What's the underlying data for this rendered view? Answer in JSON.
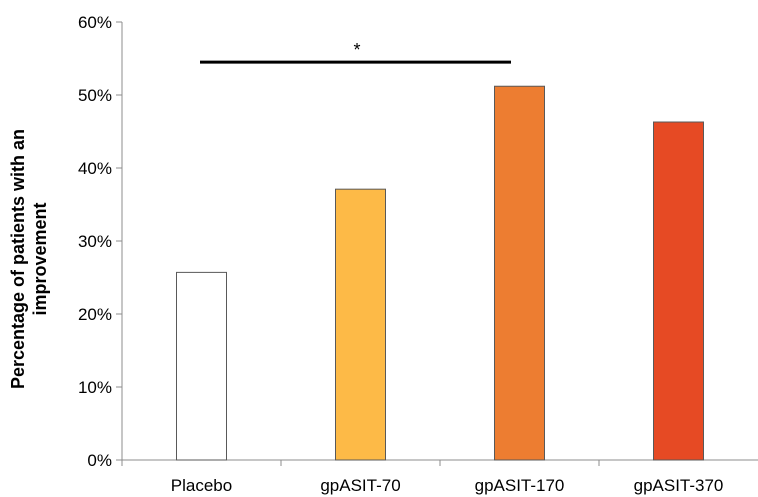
{
  "chart_data": {
    "type": "bar",
    "categories": [
      "Placebo",
      "gpASIT-70",
      "gpASIT-170",
      "gpASIT-370"
    ],
    "values": [
      25.7,
      37.1,
      51.2,
      46.3
    ],
    "bar_fills": [
      "#FFFFFF",
      "#FDBA47",
      "#ED7D31",
      "#E64A24"
    ],
    "bar_stroke": "#595959",
    "ylabel_lines": [
      "Percentage of patients with an",
      "improvement"
    ],
    "ylim": [
      0,
      60
    ],
    "y_ticks": [
      "0%",
      "10%",
      "20%",
      "30%",
      "40%",
      "50%",
      "60%"
    ],
    "y_tick_values": [
      0,
      10,
      20,
      30,
      40,
      50,
      60
    ],
    "grid": false,
    "legend": "none",
    "annotations": [
      {
        "text": "*",
        "from_category": 0,
        "to_category": 2,
        "level": 54.5
      }
    ]
  }
}
